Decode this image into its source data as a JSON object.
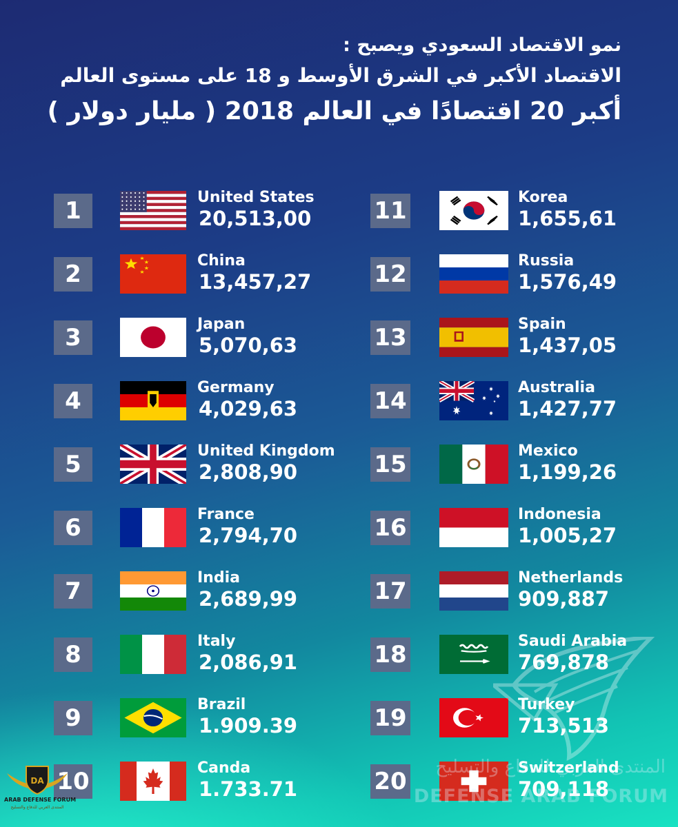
{
  "header": {
    "line1": "نمو الاقتصاد السعودي ويصبح :",
    "line2": "الاقتصاد الأكبر في الشرق الأوسط و 18 على مستوى العالم",
    "line3": "أكبر 20 اقتصادًا في العالم 2018 ( مليار دولار )"
  },
  "left_column": [
    {
      "rank": "1",
      "country": "United States",
      "value": "20,513,00",
      "flag_icon": "usa-flag-icon"
    },
    {
      "rank": "2",
      "country": "China",
      "value": "13,457,27",
      "flag_icon": "china-flag-icon"
    },
    {
      "rank": "3",
      "country": "Japan",
      "value": "5,070,63",
      "flag_icon": "japan-flag-icon"
    },
    {
      "rank": "4",
      "country": "Germany",
      "value": "4,029,63",
      "flag_icon": "germany-flag-icon"
    },
    {
      "rank": "5",
      "country": "United Kingdom",
      "value": "2,808,90",
      "flag_icon": "uk-flag-icon"
    },
    {
      "rank": "6",
      "country": "France",
      "value": "2,794,70",
      "flag_icon": "france-flag-icon"
    },
    {
      "rank": "7",
      "country": "India",
      "value": "2,689,99",
      "flag_icon": "india-flag-icon"
    },
    {
      "rank": "8",
      "country": "Italy",
      "value": "2,086,91",
      "flag_icon": "italy-flag-icon"
    },
    {
      "rank": "9",
      "country": "Brazil",
      "value": "1.909.39",
      "flag_icon": "brazil-flag-icon"
    },
    {
      "rank": "10",
      "country": "Canda",
      "value": "1.733.71",
      "flag_icon": "canada-flag-icon"
    }
  ],
  "right_column": [
    {
      "rank": "11",
      "country": "Korea",
      "value": "1,655,61",
      "flag_icon": "korea-flag-icon"
    },
    {
      "rank": "12",
      "country": "Russia",
      "value": "1,576,49",
      "flag_icon": "russia-flag-icon"
    },
    {
      "rank": "13",
      "country": "Spain",
      "value": "1,437,05",
      "flag_icon": "spain-flag-icon"
    },
    {
      "rank": "14",
      "country": "Australia",
      "value": "1,427,77",
      "flag_icon": "australia-flag-icon"
    },
    {
      "rank": "15",
      "country": "Mexico",
      "value": "1,199,26",
      "flag_icon": "mexico-flag-icon"
    },
    {
      "rank": "16",
      "country": "Indonesia",
      "value": "1,005,27",
      "flag_icon": "indonesia-flag-icon"
    },
    {
      "rank": "17",
      "country": "Netherlands",
      "value": "909,887",
      "flag_icon": "netherlands-flag-icon"
    },
    {
      "rank": "18",
      "country": "Saudi Arabia",
      "value": "769,878",
      "flag_icon": "saudi-arabia-flag-icon"
    },
    {
      "rank": "19",
      "country": "Turkey",
      "value": "713,513",
      "flag_icon": "turkey-flag-icon"
    },
    {
      "rank": "20",
      "country": "Switzerland",
      "value": "709,118",
      "flag_icon": "switzerland-flag-icon"
    }
  ],
  "watermark": {
    "arabic": "المنتدى العربي للدفاع والتسليح",
    "english": "DEFENSE ARAB FORUM"
  },
  "corner_logo": {
    "initials": "DA",
    "text": "ARAB DEFENSE FORUM",
    "arabic": "المنتدى العربي للدفاع والتسليح"
  },
  "colors": {
    "background_top": "#1d2b73",
    "background_bottom": "#19e2c2",
    "rank_box": "#5b6a8a",
    "text": "#ffffff"
  }
}
